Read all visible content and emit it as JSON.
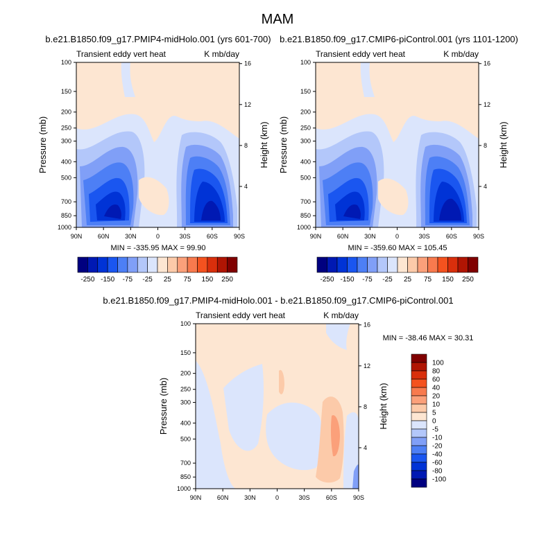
{
  "page": {
    "title": "MAM"
  },
  "palette": {
    "neg": [
      "#000080",
      "#0019b3",
      "#0033d6",
      "#1a56f0",
      "#4d7ff5",
      "#809ff7",
      "#b3c7fa",
      "#dbe5fc"
    ],
    "pos": [
      "#fde6d2",
      "#fccaa9",
      "#fba07a",
      "#f87a4e",
      "#f4521f",
      "#d92f0c",
      "#b01503",
      "#800000"
    ]
  },
  "chart_data": [
    {
      "type": "heatmap",
      "title": "b.e21.B1850.f09_g17.PMIP4-midHolo.001 (yrs 601-700)",
      "left_label": "Transient eddy vert heat",
      "right_label": "K mb/day",
      "ylabel": "Pressure (mb)",
      "y2label": "Height (km)",
      "xticks": [
        "90N",
        "60N",
        "30N",
        "0",
        "30S",
        "60S",
        "90S"
      ],
      "yticks": [
        "100",
        "150",
        "200",
        "250",
        "300",
        "400",
        "500",
        "700",
        "850",
        "1000"
      ],
      "y2ticks": [
        "16",
        "12",
        "8",
        "4"
      ],
      "minmax": "MIN = -335.95   MAX =  99.90",
      "colorbar_labels": [
        "-250",
        "-150",
        "-75",
        "-25",
        "25",
        "75",
        "150",
        "250"
      ],
      "min": -335.95,
      "max": 99.9
    },
    {
      "type": "heatmap",
      "title": "b.e21.B1850.f09_g17.CMIP6-piControl.001 (yrs 1101-1200)",
      "left_label": "Transient eddy vert heat",
      "right_label": "K mb/day",
      "ylabel": "Pressure (mb)",
      "y2label": "Height (km)",
      "xticks": [
        "90N",
        "60N",
        "30N",
        "0",
        "30S",
        "60S",
        "90S"
      ],
      "yticks": [
        "100",
        "150",
        "200",
        "250",
        "300",
        "400",
        "500",
        "700",
        "850",
        "1000"
      ],
      "y2ticks": [
        "16",
        "12",
        "8",
        "4"
      ],
      "minmax": "MIN = -359.60   MAX =  105.45",
      "colorbar_labels": [
        "-250",
        "-150",
        "-75",
        "-25",
        "25",
        "75",
        "150",
        "250"
      ],
      "min": -359.6,
      "max": 105.45
    },
    {
      "type": "heatmap",
      "title": "b.e21.B1850.f09_g17.PMIP4-midHolo.001 - b.e21.B1850.f09_g17.CMIP6-piControl.001",
      "left_label": "Transient eddy vert heat",
      "right_label": "K mb/day",
      "ylabel": "Pressure (mb)",
      "y2label": "Height (km)",
      "xticks": [
        "90N",
        "60N",
        "30N",
        "0",
        "30S",
        "60S",
        "90S"
      ],
      "yticks": [
        "100",
        "150",
        "200",
        "250",
        "300",
        "400",
        "500",
        "700",
        "850",
        "1000"
      ],
      "y2ticks": [
        "16",
        "12",
        "8",
        "4"
      ],
      "minmax": "MIN = -38.46   MAX =  30.31",
      "colorbar_labels": [
        "100",
        "80",
        "60",
        "40",
        "20",
        "10",
        "5",
        "0",
        "-5",
        "-10",
        "-20",
        "-40",
        "-60",
        "-80",
        "-100"
      ],
      "min": -38.46,
      "max": 30.31
    }
  ]
}
